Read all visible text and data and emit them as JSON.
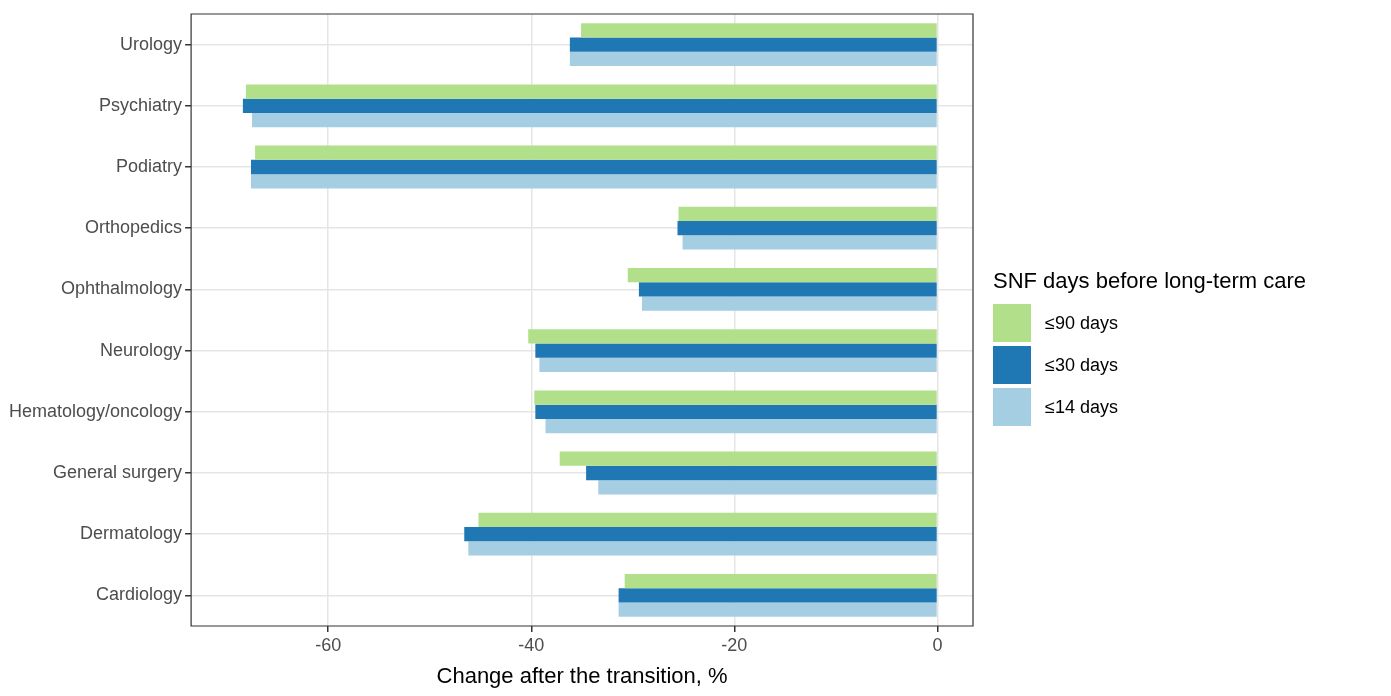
{
  "chart_data": {
    "type": "bar",
    "orientation": "horizontal",
    "xlabel": "Change after the transition, %",
    "legend_title": "SNF days before long-term care",
    "categories": [
      "Urology",
      "Psychiatry",
      "Podiatry",
      "Orthopedics",
      "Ophthalmology",
      "Neurology",
      "Hematology/oncology",
      "General surgery",
      "Dermatology",
      "Cardiology"
    ],
    "series": [
      {
        "name": "≤90 days",
        "color": "#b2df8a",
        "values": [
          -35.1,
          -68.1,
          -67.2,
          -25.5,
          -30.5,
          -40.3,
          -39.7,
          -37.2,
          -45.2,
          -30.8
        ]
      },
      {
        "name": "≤30 days",
        "color": "#1f78b4",
        "values": [
          -36.2,
          -68.4,
          -67.6,
          -25.6,
          -29.4,
          -39.6,
          -39.6,
          -34.6,
          -46.6,
          -31.4
        ]
      },
      {
        "name": "≤14 days",
        "color": "#a6cee3",
        "values": [
          -36.2,
          -67.5,
          -67.6,
          -25.1,
          -29.1,
          -39.2,
          -38.6,
          -33.4,
          -46.2,
          -31.4
        ]
      }
    ],
    "xlim": [
      -73.5,
      3.5
    ],
    "xticks": [
      -60,
      -40,
      -20,
      0
    ],
    "grid": true,
    "legend": "right"
  }
}
